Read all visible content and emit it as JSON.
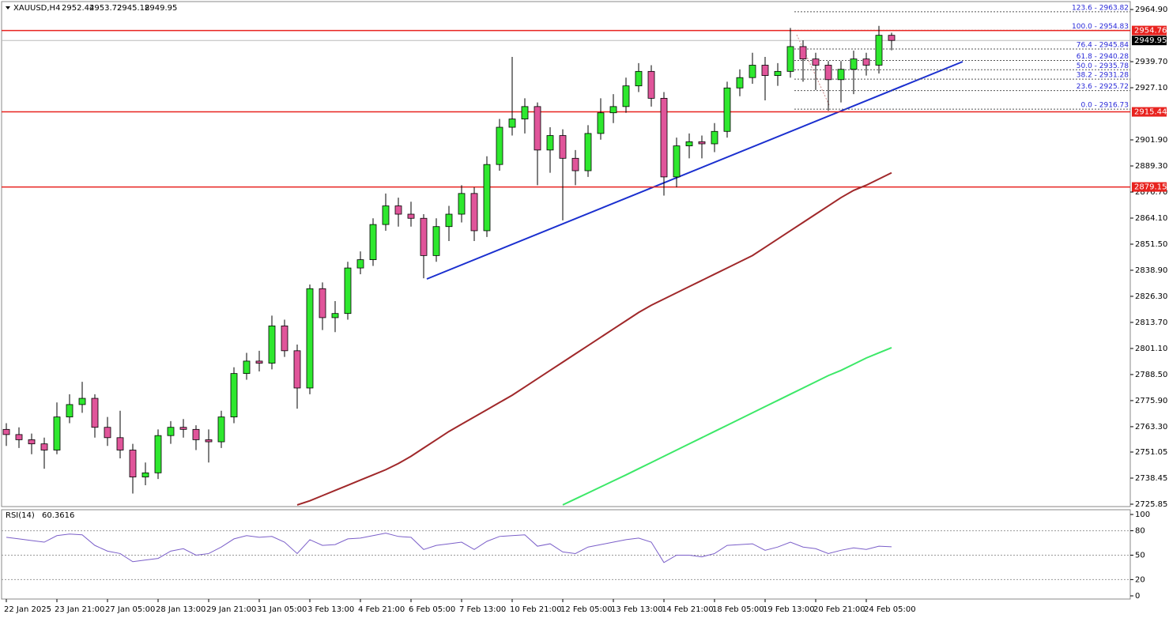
{
  "chart_data": [
    {
      "type": "candlestick",
      "title": "XAUUSD,H4",
      "categories": [
        "22 Jan 2025",
        null,
        null,
        null,
        "23 Jan 21:00",
        null,
        null,
        null,
        "27 Jan 05:00",
        null,
        null,
        null,
        "28 Jan 13:00",
        null,
        null,
        null,
        "29 Jan 21:00",
        null,
        null,
        null,
        "31 Jan 05:00",
        null,
        null,
        null,
        "3 Feb 13:00",
        null,
        null,
        null,
        "4 Feb 21:00",
        null,
        null,
        null,
        "6 Feb 05:00",
        null,
        null,
        null,
        "7 Feb 13:00",
        null,
        null,
        null,
        "10 Feb 21:00",
        null,
        null,
        null,
        "12 Feb 05:00",
        null,
        null,
        null,
        "13 Feb 13:00",
        null,
        null,
        null,
        "14 Feb 21:00",
        null,
        null,
        null,
        "18 Feb 05:00",
        null,
        null,
        null,
        "19 Feb 13:00",
        null,
        null,
        null,
        "20 Feb 21:00",
        null,
        null,
        null,
        "24 Feb 05:00",
        null,
        null
      ],
      "ohlc": [
        [
          2762,
          2765,
          2754,
          2759.5
        ],
        [
          2759.5,
          2763,
          2753,
          2757
        ],
        [
          2757,
          2760,
          2750,
          2755
        ],
        [
          2755,
          2758,
          2743,
          2752
        ],
        [
          2752,
          2775,
          2750,
          2768
        ],
        [
          2768,
          2779,
          2765,
          2774
        ],
        [
          2774,
          2785,
          2770,
          2777
        ],
        [
          2777,
          2779,
          2758,
          2763
        ],
        [
          2763,
          2768,
          2754,
          2758
        ],
        [
          2758,
          2771,
          2748,
          2752
        ],
        [
          2752,
          2755,
          2731,
          2739
        ],
        [
          2739,
          2746,
          2735,
          2741
        ],
        [
          2741,
          2762,
          2738,
          2759
        ],
        [
          2759,
          2766,
          2755,
          2763
        ],
        [
          2763,
          2767,
          2758,
          2762
        ],
        [
          2762,
          2764,
          2752,
          2757
        ],
        [
          2757,
          2762,
          2746,
          2756
        ],
        [
          2756,
          2771,
          2753,
          2768
        ],
        [
          2768,
          2792,
          2765,
          2789
        ],
        [
          2789,
          2799,
          2786,
          2795
        ],
        [
          2795,
          2800,
          2790,
          2794
        ],
        [
          2794,
          2817,
          2791,
          2812
        ],
        [
          2812,
          2815,
          2797,
          2800
        ],
        [
          2800,
          2803,
          2772,
          2782
        ],
        [
          2782,
          2832,
          2779,
          2830
        ],
        [
          2830,
          2833,
          2810,
          2816
        ],
        [
          2816,
          2824,
          2809,
          2818
        ],
        [
          2818,
          2843,
          2815,
          2840
        ],
        [
          2840,
          2848,
          2837,
          2844
        ],
        [
          2844,
          2864,
          2841,
          2861
        ],
        [
          2861,
          2876,
          2858,
          2870
        ],
        [
          2870,
          2874,
          2860,
          2866
        ],
        [
          2866,
          2872,
          2860,
          2864
        ],
        [
          2864,
          2866,
          2835,
          2846
        ],
        [
          2846,
          2864,
          2843,
          2860
        ],
        [
          2860,
          2870,
          2853,
          2866
        ],
        [
          2866,
          2880,
          2862,
          2876
        ],
        [
          2876,
          2879,
          2853,
          2858
        ],
        [
          2858,
          2894,
          2855,
          2890
        ],
        [
          2890,
          2912,
          2887,
          2908
        ],
        [
          2908,
          2942,
          2904,
          2912
        ],
        [
          2912,
          2922,
          2905,
          2918
        ],
        [
          2918,
          2920,
          2880,
          2897
        ],
        [
          2897,
          2908,
          2886,
          2904
        ],
        [
          2904,
          2907,
          2863,
          2893
        ],
        [
          2893,
          2897,
          2880,
          2887
        ],
        [
          2887,
          2909,
          2884,
          2905
        ],
        [
          2905,
          2922,
          2902,
          2915
        ],
        [
          2915,
          2924,
          2910,
          2918
        ],
        [
          2918,
          2932,
          2915,
          2928
        ],
        [
          2928,
          2939,
          2925,
          2935
        ],
        [
          2935,
          2938,
          2918,
          2922
        ],
        [
          2922,
          2925,
          2875,
          2884
        ],
        [
          2884,
          2903,
          2879,
          2899
        ],
        [
          2899,
          2905,
          2893,
          2901
        ],
        [
          2901,
          2904,
          2893,
          2900
        ],
        [
          2900,
          2910,
          2896,
          2906
        ],
        [
          2906,
          2930,
          2903,
          2927
        ],
        [
          2927,
          2936,
          2923,
          2932
        ],
        [
          2932,
          2944,
          2929,
          2938
        ],
        [
          2938,
          2942,
          2921,
          2933
        ],
        [
          2933,
          2939,
          2928,
          2935
        ],
        [
          2935,
          2956,
          2932,
          2947
        ],
        [
          2947,
          2950,
          2930,
          2941
        ],
        [
          2941,
          2944,
          2926,
          2938
        ],
        [
          2938,
          2940,
          2916,
          2931
        ],
        [
          2931,
          2940,
          2920,
          2936
        ],
        [
          2936,
          2945,
          2924,
          2941
        ],
        [
          2941,
          2944,
          2933,
          2938
        ],
        [
          2938,
          2957,
          2934,
          2952.44
        ],
        [
          2952.44,
          2953.72,
          2945.18,
          2949.95
        ]
      ],
      "up_color": "#2ee82e",
      "down_color": "#e0559a",
      "lines": [
        {
          "color": "#a0282a",
          "values": [
            null,
            null,
            null,
            null,
            null,
            null,
            null,
            null,
            null,
            null,
            null,
            null,
            null,
            null,
            null,
            null,
            null,
            null,
            null,
            null,
            null,
            null,
            null,
            2725.5,
            2727.5,
            2730,
            2732.5,
            2735,
            2737.5,
            2740,
            2742.5,
            2745.5,
            2749,
            2753,
            2757,
            2761,
            2764.5,
            2768,
            2771.5,
            2775,
            2778.5,
            2782.5,
            2786.5,
            2790.5,
            2794.5,
            2798.5,
            2802.5,
            2806.5,
            2810.5,
            2814.5,
            2818.5,
            2822,
            2825,
            2828,
            2831,
            2834,
            2837,
            2840,
            2843,
            2846,
            2850,
            2854,
            2858,
            2862,
            2866,
            2870,
            2874,
            2877.5,
            2880,
            2883,
            2886
          ]
        },
        {
          "color": "#3ce868",
          "values": [
            null,
            null,
            null,
            null,
            null,
            null,
            null,
            null,
            null,
            null,
            null,
            null,
            null,
            null,
            null,
            null,
            null,
            null,
            null,
            null,
            null,
            null,
            null,
            null,
            null,
            null,
            null,
            null,
            null,
            null,
            null,
            null,
            null,
            null,
            null,
            null,
            null,
            null,
            null,
            null,
            null,
            null,
            null,
            null,
            2725.5,
            2728.4,
            2731.3,
            2734.2,
            2737.1,
            2740,
            2743,
            2746,
            2749,
            2752,
            2755,
            2758,
            2761,
            2764,
            2767,
            2770,
            2773,
            2776,
            2779,
            2782,
            2785,
            2788,
            2790.5,
            2793.5,
            2796.5,
            2799,
            2801.5
          ]
        }
      ],
      "hlines": [
        2954.76,
        2915.44,
        2879.15
      ],
      "hline_color": "#e8231f",
      "fib_levels": [
        {
          "label": "123.6 - 2963.82",
          "value": 2963.82
        },
        {
          "label": "100.0 - 2954.83",
          "value": 2954.83
        },
        {
          "label": "76.4 - 2945.84",
          "value": 2945.84
        },
        {
          "label": "61.8 - 2940.28",
          "value": 2940.28
        },
        {
          "label": "50.0 - 2935.78",
          "value": 2935.78
        },
        {
          "label": "38.2 - 2931.28",
          "value": 2931.28
        },
        {
          "label": "23.6 - 2925.72",
          "value": 2925.72
        },
        {
          "label": "0.0 - 2916.73",
          "value": 2916.73
        }
      ],
      "ylim": [
        2724.7,
        2969.5
      ],
      "yticks": [
        {
          "value": 2964.9,
          "label": "2964.90"
        },
        {
          "value": 2939.7,
          "label": "2939.70"
        },
        {
          "value": 2927.1,
          "label": "2927.10"
        },
        {
          "value": 2901.9,
          "label": "2901.90"
        },
        {
          "value": 2889.3,
          "label": "2889.30"
        },
        {
          "value": 2876.7,
          "label": "2876.70"
        },
        {
          "value": 2864.1,
          "label": "2864.10"
        },
        {
          "value": 2851.5,
          "label": "2851.50"
        },
        {
          "value": 2838.9,
          "label": "2838.90"
        },
        {
          "value": 2826.3,
          "label": "2826.30"
        },
        {
          "value": 2813.7,
          "label": "2813.70"
        },
        {
          "value": 2801.1,
          "label": "2801.10"
        },
        {
          "value": 2788.5,
          "label": "2788.50"
        },
        {
          "value": 2775.9,
          "label": "2775.90"
        },
        {
          "value": 2763.3,
          "label": "2763.30"
        },
        2751.05,
        2738.45,
        2725.85
      ]
    },
    {
      "type": "line",
      "title": "RSI(14)",
      "color": "#7b5fc9",
      "values": [
        72,
        70,
        68,
        66,
        74,
        76,
        75,
        62,
        55,
        52,
        42,
        44,
        46,
        55,
        58,
        50,
        52,
        60,
        70,
        74,
        72,
        73,
        66,
        52,
        69,
        62,
        63,
        70,
        71,
        74,
        77,
        73,
        72,
        57,
        62,
        64,
        66,
        57,
        67,
        73,
        74,
        75,
        61,
        64,
        54,
        52,
        60,
        63,
        66,
        69,
        71,
        66,
        41,
        50,
        50,
        48,
        52,
        62,
        63,
        64,
        56,
        60,
        66,
        60,
        58,
        52,
        56,
        59,
        57,
        61,
        60.3616
      ],
      "ylim": [
        0,
        100
      ],
      "yticks": [
        100,
        80,
        50,
        20,
        0
      ],
      "levels": [
        80,
        50,
        20
      ]
    }
  ]
}
